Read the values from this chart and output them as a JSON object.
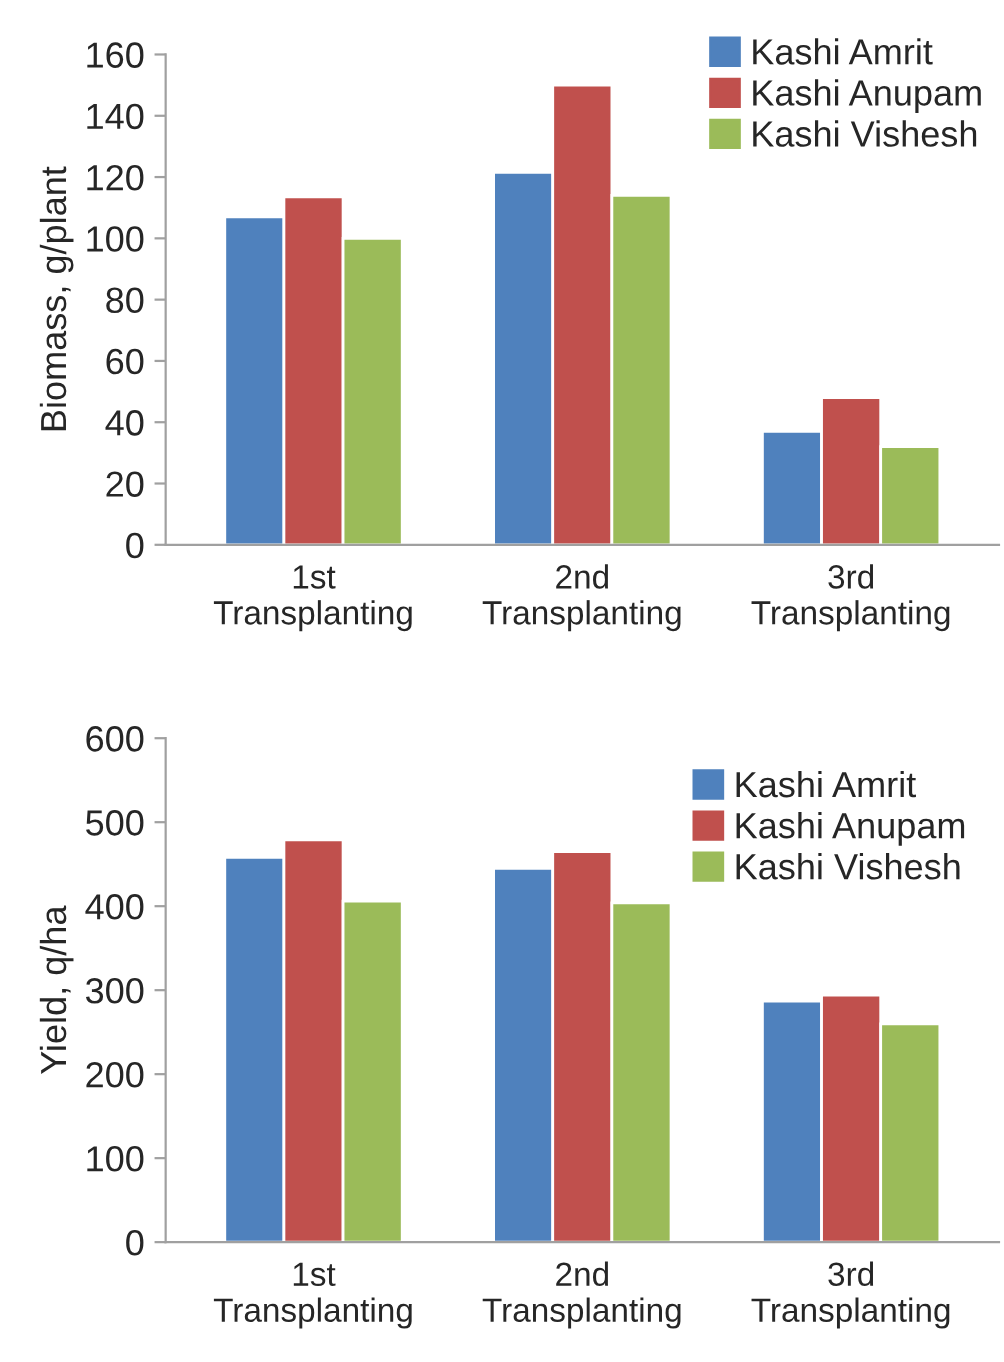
{
  "chart_data": [
    {
      "type": "bar",
      "ylabel": "Biomass, g/plant",
      "categories": [
        "1st\nTransplanting",
        "2nd\nTransplanting",
        "3rd\nTransplanting"
      ],
      "series": [
        {
          "name": "Kashi Amrit",
          "color": "#4f81bd",
          "values": [
            107,
            121.5,
            37
          ]
        },
        {
          "name": "Kashi Anupam",
          "color": "#c0504d",
          "values": [
            113.5,
            150,
            48
          ]
        },
        {
          "name": "Kashi Vishesh",
          "color": "#9bbb59",
          "values": [
            100,
            114,
            32
          ]
        }
      ],
      "ylim": [
        0,
        160
      ],
      "yticks": [
        0,
        20,
        40,
        60,
        80,
        100,
        120,
        140,
        160
      ],
      "grid": false,
      "legend": "top right"
    },
    {
      "type": "bar",
      "ylabel": "Yield, q/ha",
      "categories": [
        "1st\nTransplanting",
        "2nd\nTransplanting",
        "3rd\nTransplanting"
      ],
      "series": [
        {
          "name": "Kashi Amrit",
          "color": "#4f81bd",
          "values": [
            458,
            445,
            287
          ]
        },
        {
          "name": "Kashi Anupam",
          "color": "#c0504d",
          "values": [
            479,
            465,
            294
          ]
        },
        {
          "name": "Kashi Vishesh",
          "color": "#9bbb59",
          "values": [
            406,
            404,
            260
          ]
        }
      ],
      "ylim": [
        0,
        600
      ],
      "yticks": [
        0,
        100,
        200,
        300,
        400,
        500,
        600
      ],
      "grid": false,
      "legend": "top right"
    }
  ]
}
